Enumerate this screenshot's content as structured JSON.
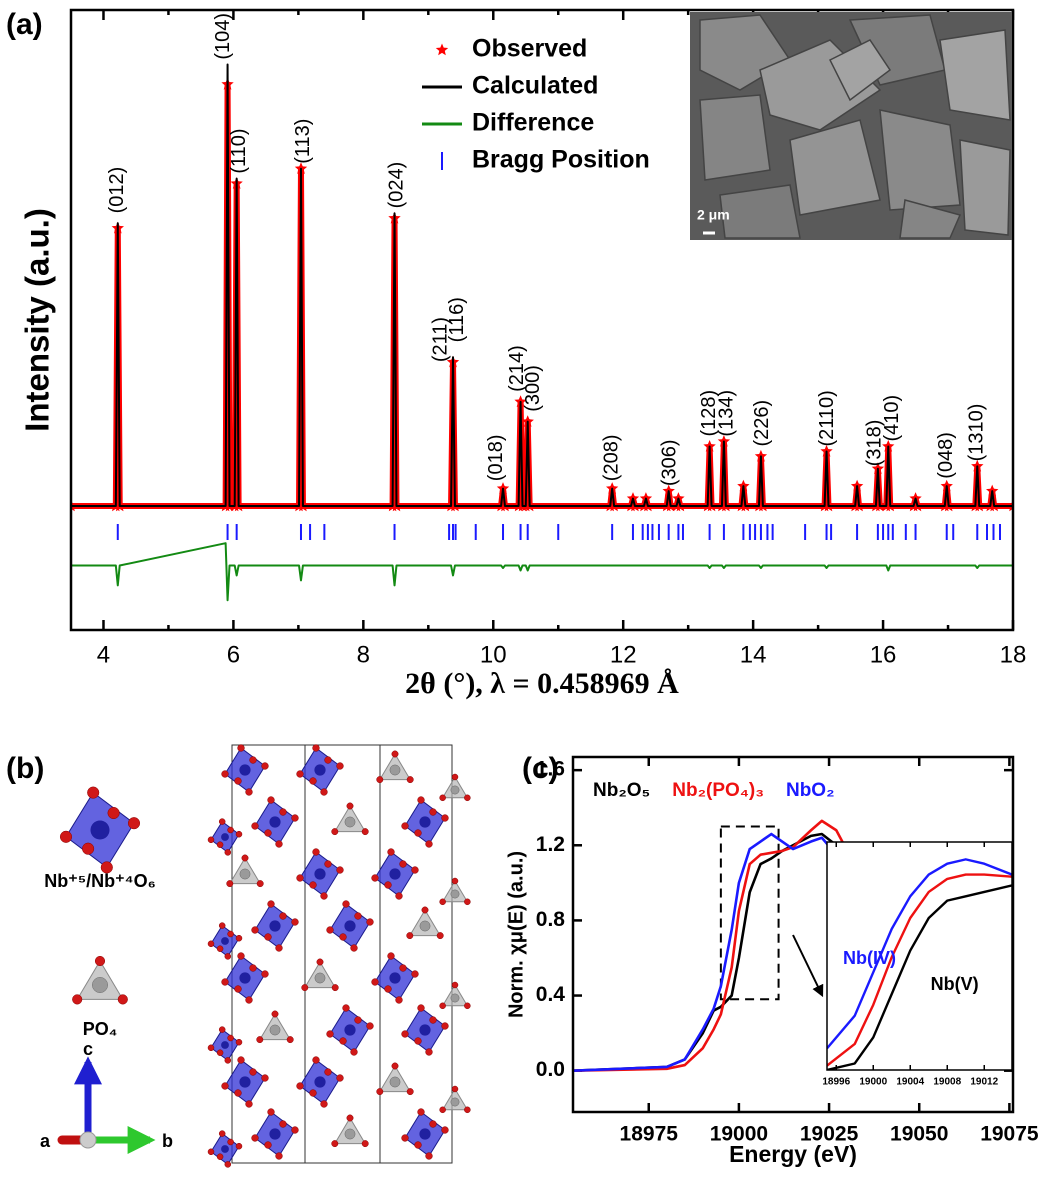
{
  "chart_data": [
    {
      "type": "line",
      "panel": "(a)",
      "x_label": "2θ (°), λ = 0.458969 Å",
      "y_label": "Intensity (a.u.)",
      "xlim": [
        3.5,
        18
      ],
      "xticks": [
        4,
        6,
        8,
        10,
        12,
        14,
        16,
        18
      ],
      "xminorticks": [
        5,
        7,
        9,
        11,
        13,
        15,
        17
      ],
      "ylim": [
        -25,
        100
      ],
      "legend": "upper center",
      "x": [
        3.5,
        4.19,
        4.22,
        4.25,
        5.88,
        5.91,
        5.94,
        6.02,
        6.05,
        6.08,
        7.01,
        7.04,
        7.07,
        8.45,
        8.48,
        8.51,
        9.35,
        9.38,
        9.41,
        10.12,
        10.15,
        10.18,
        10.39,
        10.42,
        10.45,
        10.5,
        10.53,
        10.56,
        11.8,
        11.83,
        11.86,
        12.12,
        12.15,
        12.18,
        12.32,
        12.35,
        12.38,
        12.67,
        12.7,
        12.73,
        12.82,
        12.85,
        12.88,
        13.3,
        13.33,
        13.36,
        13.52,
        13.55,
        13.58,
        13.82,
        13.85,
        13.88,
        14.09,
        14.12,
        14.15,
        15.1,
        15.13,
        15.16,
        15.57,
        15.6,
        15.63,
        15.89,
        15.92,
        15.95,
        16.05,
        16.08,
        16.11,
        16.47,
        16.5,
        16.53,
        16.95,
        16.98,
        17.01,
        17.42,
        17.45,
        17.48,
        17.65,
        17.68,
        17.71,
        18
      ],
      "series": [
        {
          "name": "Observed",
          "color": "#ff0000",
          "mode": "markers",
          "values": [
            0,
            0,
            56,
            0,
            0,
            85,
            0,
            0,
            65,
            0,
            0,
            68,
            0,
            0,
            58,
            0,
            0,
            29,
            0,
            0,
            3.5,
            0,
            0,
            21,
            0,
            0,
            17,
            0,
            0,
            3.5,
            0,
            0,
            1.5,
            0,
            0,
            1.5,
            0,
            0,
            3,
            0,
            0,
            1.5,
            0,
            0,
            12,
            0,
            0,
            13,
            0,
            0,
            4,
            0,
            0,
            10,
            0,
            0,
            11,
            0,
            0,
            4,
            0,
            0,
            7.5,
            0,
            0,
            12,
            0,
            0,
            1.5,
            0,
            0,
            4,
            0,
            0,
            8,
            0,
            0,
            3,
            0,
            0
          ]
        },
        {
          "name": "Calculated",
          "color": "#000000",
          "mode": "lines",
          "values": [
            0,
            0,
            57,
            0,
            0,
            89,
            0,
            0,
            66,
            0,
            0,
            68,
            0,
            0,
            59,
            0,
            0,
            30,
            0,
            0,
            3.5,
            0,
            0,
            21,
            0,
            0,
            17,
            0,
            0,
            3.5,
            0,
            0,
            1.5,
            0,
            0,
            1.5,
            0,
            0,
            3,
            0,
            0,
            1.5,
            0,
            0,
            12,
            0,
            0,
            13,
            0,
            0,
            4,
            0,
            0,
            10,
            0,
            0,
            11,
            0,
            0,
            4,
            0,
            0,
            7.5,
            0,
            0,
            12,
            0,
            0,
            1.5,
            0,
            0,
            4,
            0,
            0,
            8,
            0,
            0,
            3,
            0,
            0
          ]
        },
        {
          "name": "Difference",
          "color": "#138a13",
          "mode": "lines",
          "values": [
            -12,
            -12,
            -16,
            -12,
            -7.5,
            -19,
            -12,
            -12,
            -14,
            -12,
            -12,
            -15,
            -12,
            -12,
            -16,
            -12,
            -12,
            -14,
            -12,
            -12,
            -12.5,
            -12,
            -12,
            -13,
            -12,
            -12,
            -13,
            -12,
            -12,
            -12,
            -12,
            -12,
            -12,
            -12,
            -12,
            -12,
            -12,
            -12,
            -12,
            -12,
            -12,
            -12,
            -12,
            -12,
            -12.5,
            -12,
            -12,
            -12.5,
            -12,
            -12,
            -12,
            -12,
            -12,
            -12.5,
            -12,
            -12,
            -12.5,
            -12,
            -12,
            -12,
            -12,
            -12,
            -12,
            -12,
            -12,
            -13,
            -12,
            -12,
            -12,
            -12,
            -12,
            -12,
            -12,
            -12,
            -12.5,
            -12,
            -12,
            -12,
            -12,
            -12
          ]
        },
        {
          "name": "Bragg Position",
          "color": "#1a1aff",
          "mode": "ticks",
          "x": [
            4.22,
            5.91,
            6.05,
            7.04,
            7.18,
            7.4,
            8.48,
            9.32,
            9.38,
            9.42,
            9.73,
            10.15,
            10.42,
            10.53,
            11.0,
            11.83,
            12.15,
            12.3,
            12.38,
            12.45,
            12.55,
            12.7,
            12.85,
            12.92,
            13.33,
            13.55,
            13.85,
            13.95,
            14.03,
            14.12,
            14.22,
            14.3,
            14.8,
            15.13,
            15.2,
            15.6,
            15.92,
            16.0,
            16.08,
            16.15,
            16.35,
            16.5,
            16.98,
            17.08,
            17.45,
            17.6,
            17.7,
            17.8
          ]
        }
      ],
      "annotation_rotation": -90,
      "annotations": [
        {
          "text": "(012)",
          "x": 4.22,
          "y": 59
        },
        {
          "text": "(104)",
          "x": 5.85,
          "y": 90
        },
        {
          "text": "(110)",
          "x": 6.1,
          "y": 67
        },
        {
          "text": "(113)",
          "x": 7.08,
          "y": 69
        },
        {
          "text": "(024)",
          "x": 8.52,
          "y": 60
        },
        {
          "text": "(211)",
          "x": 9.2,
          "y": 29
        },
        {
          "text": "(116)",
          "x": 9.45,
          "y": 33
        },
        {
          "text": "(018)",
          "x": 10.05,
          "y": 5
        },
        {
          "text": "(214)",
          "x": 10.38,
          "y": 23
        },
        {
          "text": "(300)",
          "x": 10.62,
          "y": 19
        },
        {
          "text": "(208)",
          "x": 11.83,
          "y": 5
        },
        {
          "text": "(306)",
          "x": 12.72,
          "y": 4
        },
        {
          "text": "(128)",
          "x": 13.33,
          "y": 14
        },
        {
          "text": "(134)",
          "x": 13.6,
          "y": 14
        },
        {
          "text": "(226)",
          "x": 14.15,
          "y": 12
        },
        {
          "text": "(2110)",
          "x": 15.15,
          "y": 12
        },
        {
          "text": "(318)",
          "x": 15.88,
          "y": 8
        },
        {
          "text": "(410)",
          "x": 16.15,
          "y": 13
        },
        {
          "text": "(048)",
          "x": 16.98,
          "y": 5.5
        },
        {
          "text": "(1310)",
          "x": 17.45,
          "y": 9
        }
      ],
      "inset_label": "2 μm"
    },
    {
      "type": "line",
      "panel": "(c)",
      "x_label": "Energy (eV)",
      "y_label": "Norm. χμ(E)  (a.u.)",
      "xlim": [
        18954,
        19076
      ],
      "xticks": [
        18975,
        19000,
        19025,
        19050,
        19075
      ],
      "ylim": [
        -0.22,
        1.67
      ],
      "yticks": [
        {
          "value": 0,
          "label": "0.0"
        },
        0.4,
        0.8,
        1.2,
        1.6
      ],
      "legend": "upper left",
      "legend_text_colored": true,
      "x": [
        18954,
        18980,
        18985,
        18990,
        18993,
        18995,
        18998,
        19000,
        19003,
        19006,
        19009,
        19012,
        19015,
        19020,
        19023,
        19027,
        19032,
        19040,
        19050,
        19060,
        19070,
        19076
      ],
      "series": [
        {
          "name": "Nb₂O₅",
          "color": "#000000",
          "values": [
            0,
            0.02,
            0.06,
            0.2,
            0.32,
            0.34,
            0.4,
            0.6,
            0.95,
            1.1,
            1.13,
            1.17,
            1.2,
            1.25,
            1.26,
            1.2,
            1.08,
            1.06,
            0.98,
            0.95,
            0.98,
            1.02
          ]
        },
        {
          "name": "Nb₂(PO₄)₃",
          "color": "#ee1111",
          "values": [
            0,
            0.01,
            0.03,
            0.12,
            0.22,
            0.3,
            0.55,
            0.85,
            1.1,
            1.15,
            1.16,
            1.17,
            1.19,
            1.28,
            1.33,
            1.28,
            1.1,
            0.98,
            0.93,
            0.93,
            1.0,
            1.03
          ]
        },
        {
          "name": "NbO₂",
          "color": "#1a1aff",
          "values": [
            0,
            0.02,
            0.06,
            0.22,
            0.33,
            0.45,
            0.75,
            1.0,
            1.18,
            1.22,
            1.26,
            1.22,
            1.18,
            1.22,
            1.24,
            1.15,
            1.0,
            0.95,
            0.92,
            0.95,
            1.02,
            1.07
          ]
        }
      ],
      "zoom_box": {
        "xlim": [
          18995,
          19011
        ],
        "ylim": [
          0.38,
          1.3
        ]
      }
    },
    {
      "type": "line",
      "xlim": [
        18995,
        19015
      ],
      "xticks": [
        18996,
        19000,
        19004,
        19008,
        19012
      ],
      "ylim": [
        0.3,
        1.35
      ],
      "x": [
        18995,
        18998,
        19000,
        19002,
        19004,
        19006,
        19008,
        19010,
        19012,
        19015
      ],
      "series": [
        {
          "color": "#000000",
          "values": [
            0.3,
            0.33,
            0.45,
            0.65,
            0.85,
            1.0,
            1.08,
            1.1,
            1.12,
            1.15
          ]
        },
        {
          "color": "#ee1111",
          "values": [
            0.32,
            0.42,
            0.6,
            0.82,
            1.0,
            1.12,
            1.18,
            1.2,
            1.2,
            1.19
          ]
        },
        {
          "color": "#1a1aff",
          "values": [
            0.4,
            0.55,
            0.75,
            0.95,
            1.1,
            1.2,
            1.25,
            1.27,
            1.25,
            1.2
          ]
        }
      ],
      "annotations": [
        {
          "text": "Nb(IV)",
          "x": 18999.6,
          "y": 0.81,
          "color": "#1a1aff"
        },
        {
          "text": "Nb(V)",
          "x": 19008.8,
          "y": 0.69,
          "color": "#000000"
        }
      ]
    }
  ],
  "structure": {
    "panel": "(b)",
    "octahedron_label": "Nb⁺⁵/Nb⁺⁴O₆",
    "tetrahedron_label": "PO₄",
    "axis_labels": [
      "a",
      "b",
      "c"
    ]
  }
}
